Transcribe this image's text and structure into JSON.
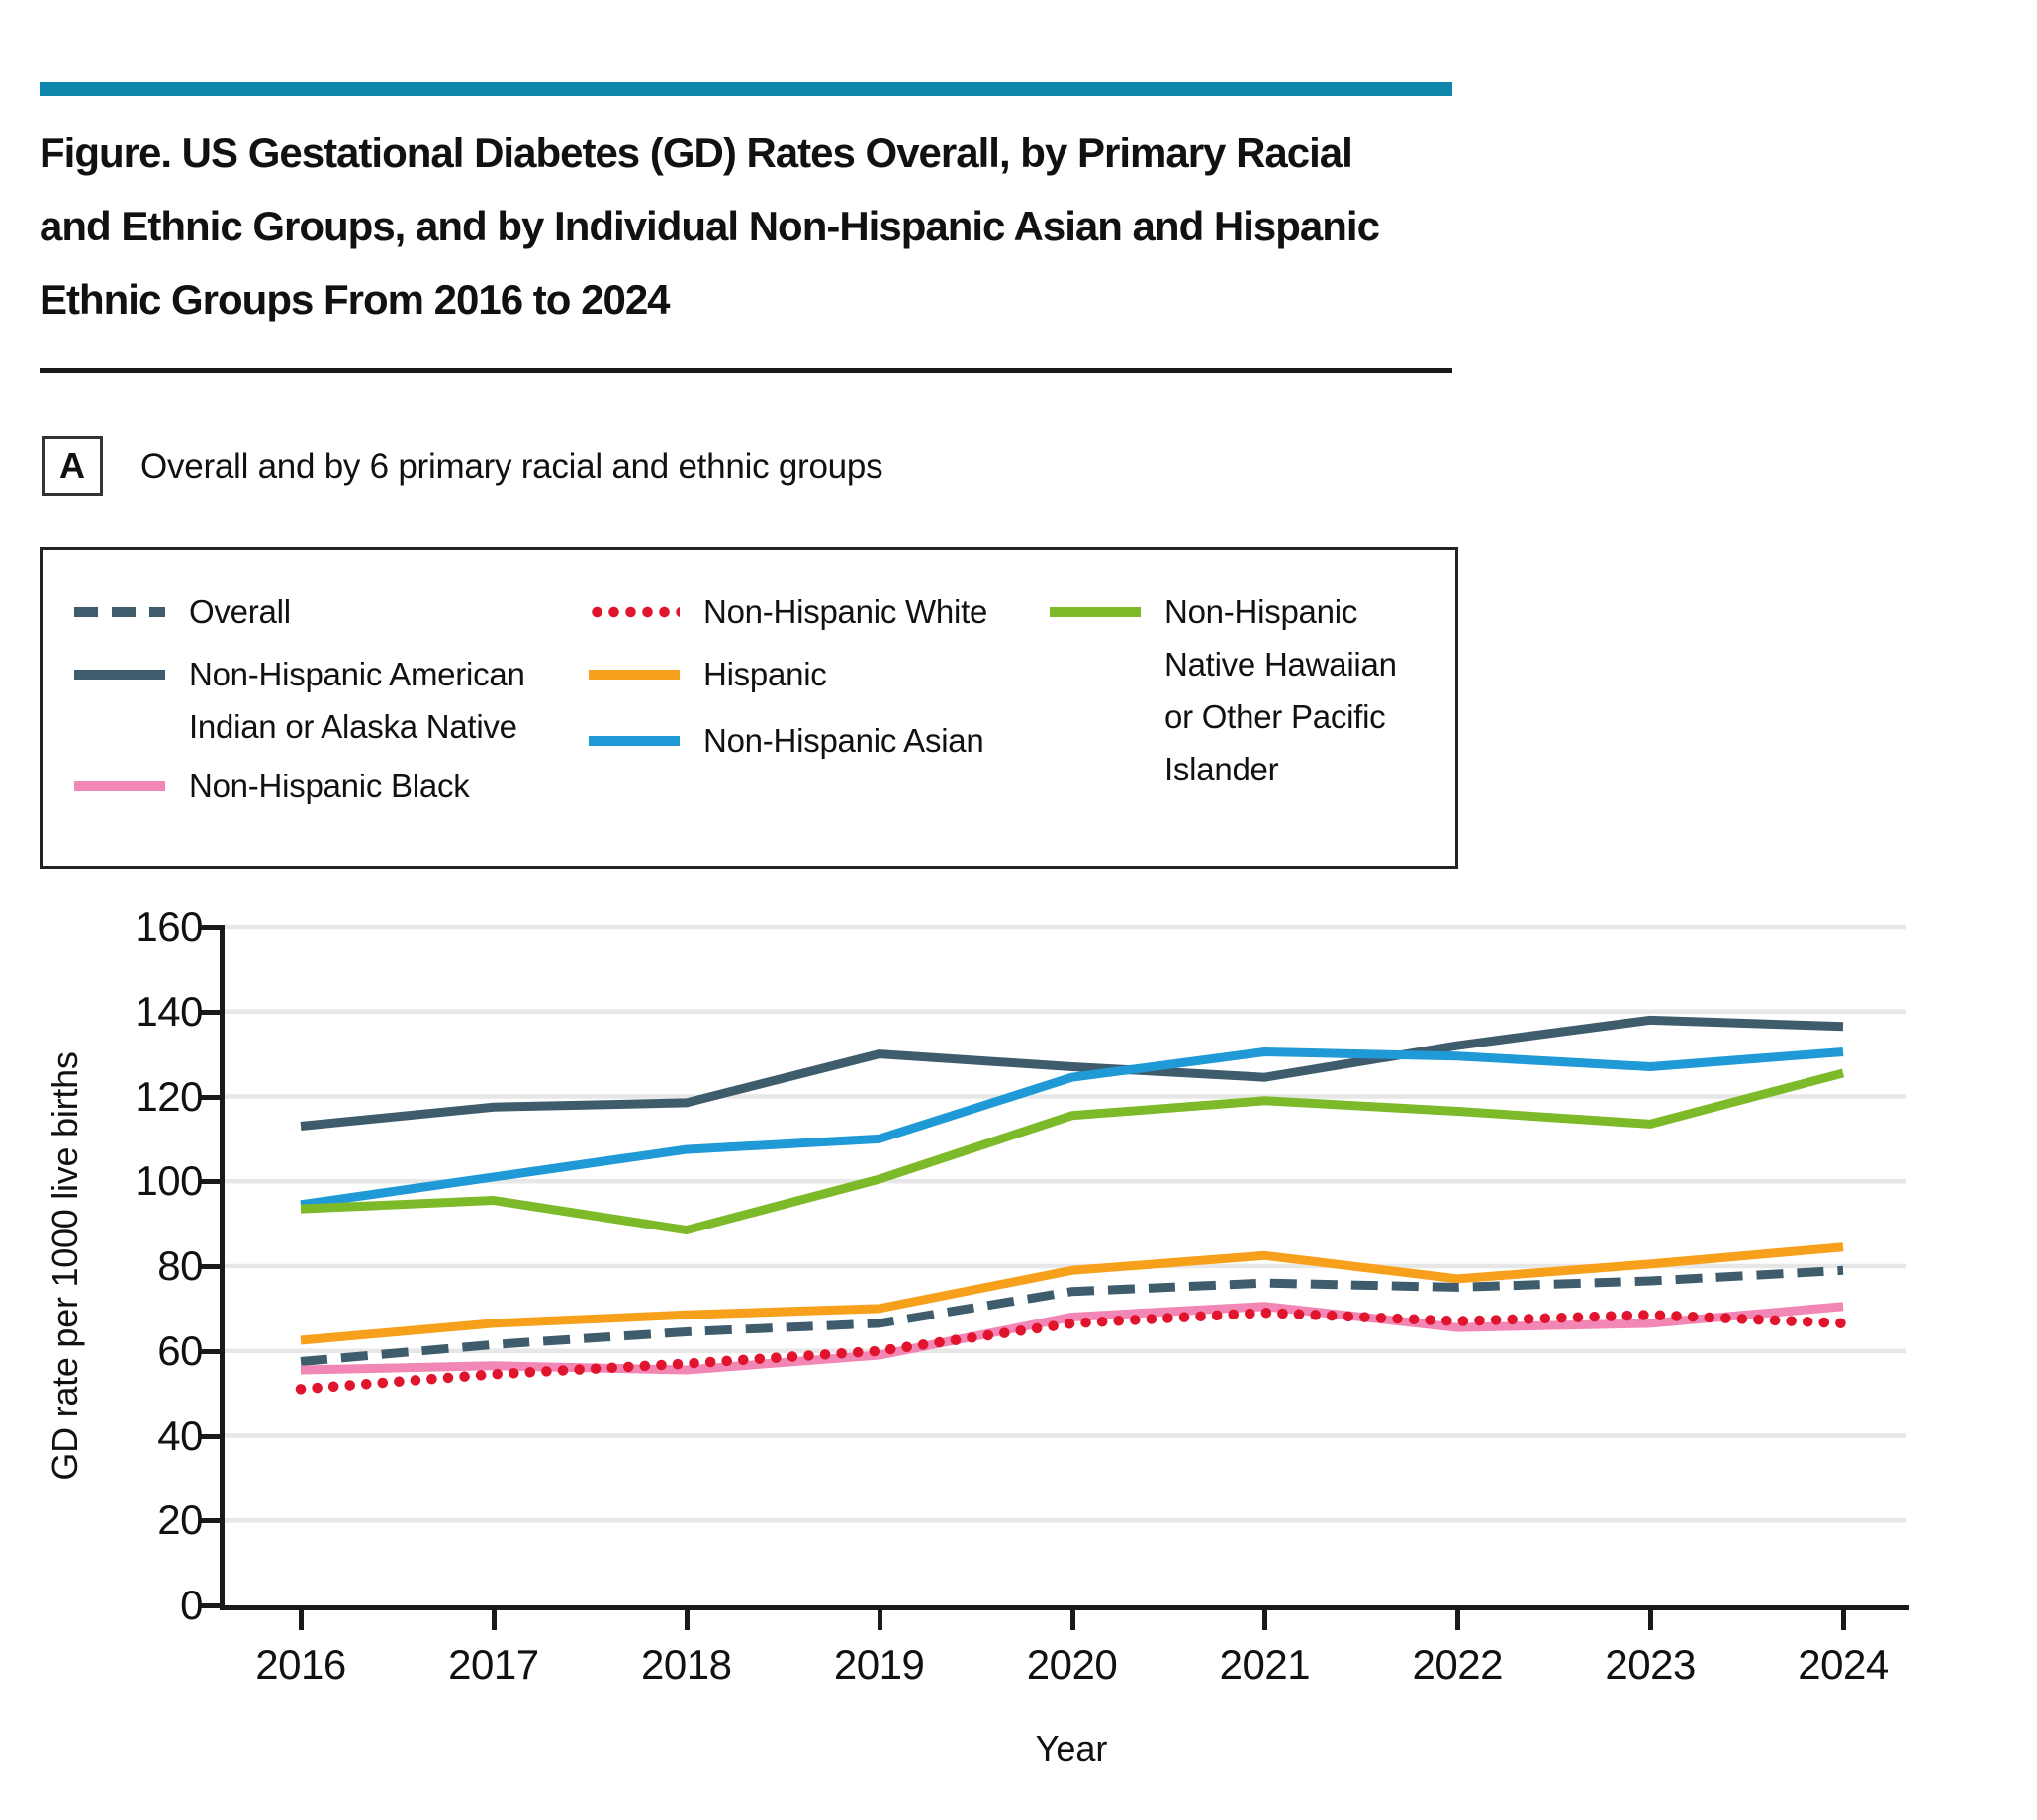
{
  "figure": {
    "title_lines": [
      "Figure. US Gestational Diabetes (GD) Rates Overall, by Primary Racial",
      "and Ethnic Groups, and by Individual Non-Hispanic Asian and Hispanic",
      "Ethnic Groups From 2016 to 2024"
    ],
    "panel_label": "A",
    "panel_caption": "Overall and by 6 primary racial and ethnic groups"
  },
  "colors": {
    "header_bar": "#0E86AB",
    "slate": "#3E5C6B",
    "blue": "#1F9AD6",
    "green": "#7CBA29",
    "orange": "#F7A01B",
    "pink": "#F287B5",
    "red": "#E1142E",
    "gridline": "#E7E7E7",
    "axis": "#1A1A1A"
  },
  "chart_data": {
    "type": "line",
    "x": [
      2016,
      2017,
      2018,
      2019,
      2020,
      2021,
      2022,
      2023,
      2024
    ],
    "x_tick_labels": [
      "2016",
      "2017",
      "2018",
      "2019",
      "2020",
      "2021",
      "2022",
      "2023",
      "2024"
    ],
    "xlabel": "Year",
    "ylabel": "GD rate per 1000 live births",
    "ylim": [
      0,
      160
    ],
    "ytick_step": 20,
    "grid": true,
    "legend_position": "top",
    "series": [
      {
        "name": "Non-Hispanic American Indian or Alaska Native",
        "color": "slate",
        "style": "solid",
        "values": [
          113,
          117.5,
          118.5,
          130,
          127,
          124.5,
          132,
          138,
          136.5
        ]
      },
      {
        "name": "Non-Hispanic Asian",
        "color": "blue",
        "style": "solid",
        "values": [
          94.5,
          101,
          107.5,
          110,
          124.5,
          130.5,
          129.5,
          127,
          130.5
        ]
      },
      {
        "name": "Non-Hispanic Native Hawaiian or Other Pacific Islander",
        "color": "green",
        "style": "solid",
        "values": [
          93.5,
          95.5,
          88.5,
          100.5,
          115.5,
          119,
          116.5,
          113.5,
          125.5
        ]
      },
      {
        "name": "Hispanic",
        "color": "orange",
        "style": "solid",
        "values": [
          62.5,
          66.5,
          68.5,
          70,
          79,
          82.5,
          77,
          80.5,
          84.5
        ]
      },
      {
        "name": "Overall",
        "color": "slate",
        "style": "dashed",
        "values": [
          57.5,
          61.5,
          64.5,
          66.5,
          74,
          76,
          75,
          76.5,
          79
        ]
      },
      {
        "name": "Non-Hispanic Black",
        "color": "pink",
        "style": "solid",
        "values": [
          55.5,
          56.5,
          55.5,
          59,
          68,
          70.5,
          65.5,
          66.5,
          70.5
        ]
      },
      {
        "name": "Non-Hispanic White",
        "color": "red",
        "style": "dotted",
        "values": [
          51,
          54.5,
          57,
          60,
          66.5,
          69,
          67,
          68.5,
          66.5
        ]
      }
    ],
    "legend_columns": [
      [
        4,
        0,
        5
      ],
      [
        6,
        3,
        1
      ],
      [
        2
      ]
    ]
  }
}
